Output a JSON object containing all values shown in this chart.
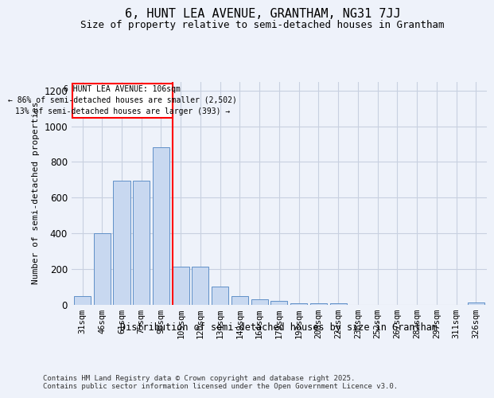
{
  "title": "6, HUNT LEA AVENUE, GRANTHAM, NG31 7JJ",
  "subtitle": "Size of property relative to semi-detached houses in Grantham",
  "xlabel": "Distribution of semi-detached houses by size in Grantham",
  "ylabel": "Number of semi-detached properties",
  "categories": [
    "31sqm",
    "46sqm",
    "61sqm",
    "75sqm",
    "90sqm",
    "105sqm",
    "120sqm",
    "134sqm",
    "149sqm",
    "164sqm",
    "179sqm",
    "193sqm",
    "208sqm",
    "223sqm",
    "238sqm",
    "252sqm",
    "267sqm",
    "282sqm",
    "297sqm",
    "311sqm",
    "326sqm"
  ],
  "values": [
    45,
    400,
    695,
    695,
    880,
    210,
    210,
    100,
    45,
    30,
    20,
    5,
    5,
    5,
    0,
    0,
    0,
    0,
    0,
    0,
    10
  ],
  "bar_color": "#c8d8f0",
  "bar_edge_color": "#6090c8",
  "vline_index": 5,
  "vline_color": "red",
  "property_label": "6 HUNT LEA AVENUE: 106sqm",
  "smaller_label": "← 86% of semi-detached houses are smaller (2,502)",
  "larger_label": "13% of semi-detached houses are larger (393) →",
  "annotation_box_color": "red",
  "ylim": [
    0,
    1250
  ],
  "yticks": [
    0,
    200,
    400,
    600,
    800,
    1000,
    1200
  ],
  "background_color": "#eef2fa",
  "footer": "Contains HM Land Registry data © Crown copyright and database right 2025.\nContains public sector information licensed under the Open Government Licence v3.0.",
  "grid_color": "#c8d0e0",
  "title_fontsize": 11,
  "subtitle_fontsize": 9
}
